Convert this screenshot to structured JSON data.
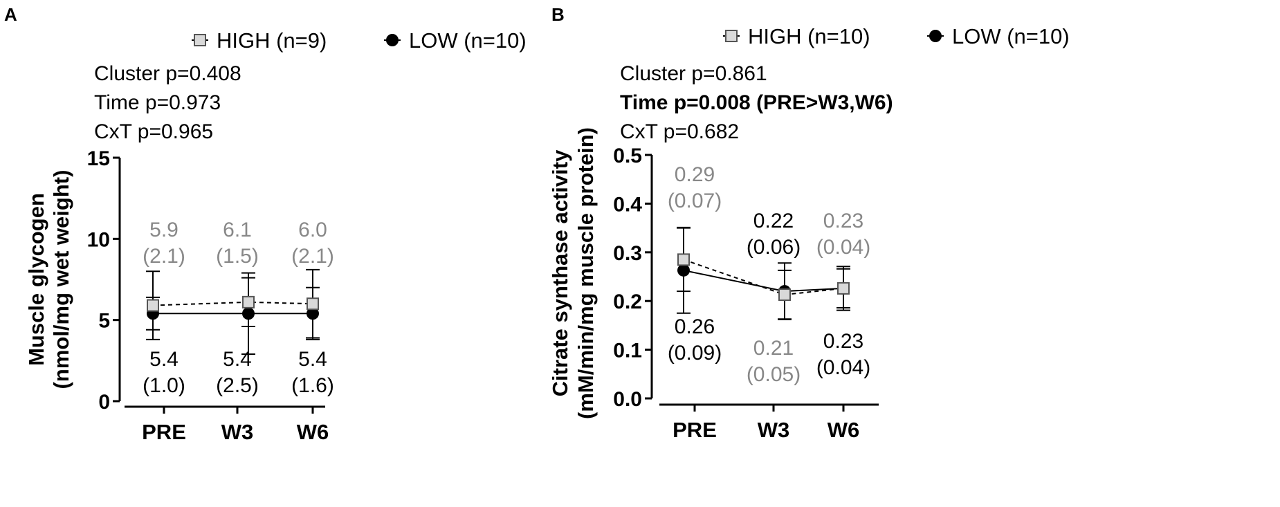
{
  "colors": {
    "high_label": "#888888",
    "low_label": "#000000",
    "marker_fill_high": "#d9d9d9",
    "marker_fill_low": "#000000"
  },
  "chart_data": [
    {
      "panel_label": "A",
      "type": "line",
      "categories": [
        "PRE",
        "W3",
        "W6"
      ],
      "ylabel_line1": "Muscle glycogen",
      "ylabel_line2": "(nmol/mg wet weight)",
      "ylim": [
        0,
        15
      ],
      "yticks": [
        "0",
        "5",
        "10",
        "15"
      ],
      "ytick_values": [
        0,
        5,
        10,
        15
      ],
      "stats": [
        {
          "text": "Cluster p=0.408",
          "bold": false
        },
        {
          "text": "Time p=0.973",
          "bold": false
        },
        {
          "text": "CxT p=0.965",
          "bold": false
        }
      ],
      "legend": [
        {
          "name": "HIGH (n=9)",
          "marker": "square-dashed"
        },
        {
          "name": "LOW (n=10)",
          "marker": "circle-solid"
        }
      ],
      "series": [
        {
          "name": "HIGH (n=9)",
          "values": [
            5.9,
            6.1,
            6.0
          ],
          "sd": [
            2.1,
            1.5,
            2.1
          ],
          "labels_mean": [
            "5.9",
            "6.1",
            "6.0"
          ],
          "labels_sd": [
            "(2.1)",
            "(1.5)",
            "(2.1)"
          ]
        },
        {
          "name": "LOW (n=10)",
          "values": [
            5.4,
            5.4,
            5.4
          ],
          "sd": [
            1.0,
            2.5,
            1.6
          ],
          "labels_mean": [
            "5.4",
            "5.4",
            "5.4"
          ],
          "labels_sd": [
            "(1.0)",
            "(2.5)",
            "(1.6)"
          ]
        }
      ]
    },
    {
      "panel_label": "B",
      "type": "line",
      "categories": [
        "PRE",
        "W3",
        "W6"
      ],
      "ylabel_line1": "Citrate synthase activity",
      "ylabel_line2": "(mM/min/mg muscle protein)",
      "ylim": [
        0,
        0.5
      ],
      "yticks": [
        "0.0",
        "0.1",
        "0.2",
        "0.3",
        "0.4",
        "0.5"
      ],
      "ytick_values": [
        0,
        0.1,
        0.2,
        0.3,
        0.4,
        0.5
      ],
      "stats": [
        {
          "text": "Cluster p=0.861",
          "bold": false
        },
        {
          "text": "Time p=0.008 (PRE>W3,W6)",
          "bold": true
        },
        {
          "text": "CxT p=0.682",
          "bold": false
        }
      ],
      "legend": [
        {
          "name": "HIGH (n=10)",
          "marker": "square-dashed"
        },
        {
          "name": "LOW (n=10)",
          "marker": "circle-solid"
        }
      ],
      "series": [
        {
          "name": "HIGH (n=10)",
          "values": [
            0.285,
            0.213,
            0.226
          ],
          "sd": [
            0.065,
            0.05,
            0.04
          ],
          "labels_mean": [
            "0.29",
            "0.21",
            "0.23"
          ],
          "labels_sd": [
            "(0.07)",
            "(0.05)",
            "(0.04)"
          ]
        },
        {
          "name": "LOW (n=10)",
          "values": [
            0.263,
            0.22,
            0.226
          ],
          "sd": [
            0.088,
            0.058,
            0.045
          ],
          "labels_mean": [
            "0.26",
            "0.22",
            "0.23"
          ],
          "labels_sd": [
            "(0.09)",
            "(0.06)",
            "(0.04)"
          ]
        }
      ]
    }
  ]
}
